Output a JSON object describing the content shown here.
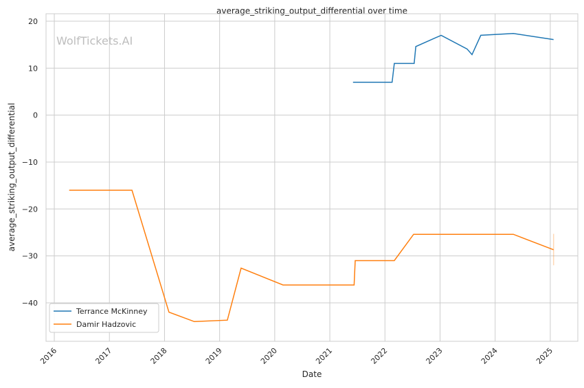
{
  "chart_data": {
    "type": "line",
    "title": "average_striking_output_differential over time",
    "xlabel": "Date",
    "ylabel": "average_striking_output_differential",
    "watermark": "WolfTickets.AI",
    "xlim": [
      2015.85,
      2025.5
    ],
    "ylim": [
      -48.2,
      21.6
    ],
    "x_ticks": [
      2016,
      2017,
      2018,
      2019,
      2020,
      2021,
      2022,
      2023,
      2024,
      2025
    ],
    "x_tick_labels": [
      "2016",
      "2017",
      "2018",
      "2019",
      "2020",
      "2021",
      "2022",
      "2023",
      "2024",
      "2025"
    ],
    "y_ticks": [
      20,
      10,
      0,
      -10,
      -20,
      -30,
      -40
    ],
    "y_tick_labels": [
      "20",
      "10",
      "0",
      "−10",
      "−20",
      "−30",
      "−40"
    ],
    "grid": true,
    "legend_position": "bottom-left",
    "series": [
      {
        "name": "Terrance McKinney",
        "color": "#1f77b4",
        "x": [
          2021.42,
          2022.13,
          2022.17,
          2022.53,
          2022.56,
          2023.02,
          2023.49,
          2023.58,
          2023.74,
          2024.33,
          2025.06
        ],
        "y": [
          7.0,
          7.0,
          11.0,
          11.0,
          14.6,
          17.0,
          14.1,
          12.9,
          17.0,
          17.4,
          16.1
        ]
      },
      {
        "name": "Damir Hadzovic",
        "color": "#ff7f0e",
        "x": [
          2016.27,
          2017.41,
          2018.08,
          2018.54,
          2019.14,
          2019.39,
          2020.15,
          2021.44,
          2021.46,
          2022.17,
          2022.52,
          2024.33,
          2025.06
        ],
        "y": [
          -16.0,
          -16.0,
          -42.0,
          -44.0,
          -43.7,
          -32.6,
          -36.2,
          -36.2,
          -31.0,
          -31.0,
          -25.4,
          -25.4,
          -28.7
        ],
        "error_band": {
          "x": 2025.06,
          "low": -32.0,
          "high": -25.3
        }
      }
    ]
  }
}
